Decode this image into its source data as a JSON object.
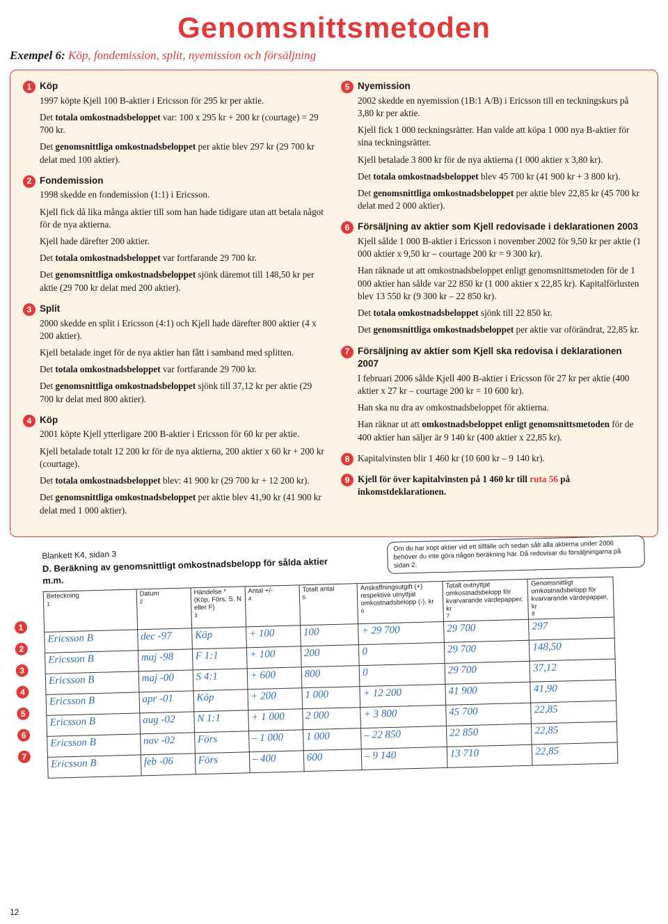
{
  "title": "Genomsnittsmetoden",
  "subtitle_lead": "Exempel 6:",
  "subtitle_rest": " Köp, fondemission, split, nyemission och försäljning",
  "colors": {
    "accent": "#e03a3a",
    "panel_bg": "#fdf3e4",
    "hand": "#2f6db0"
  },
  "left": [
    {
      "n": 1,
      "head": "Köp",
      "paras": [
        "1997 köpte Kjell 100 B-aktier i Ericsson för 295 kr per aktie.",
        "Det <b>totala omkostnadsbeloppet</b> var: 100 x 295 kr + 200 kr (courtage) = 29 700 kr.",
        "Det <b>genomsnittliga omkostnadsbeloppet</b> per aktie blev 297 kr (29 700 kr delat med 100 aktier)."
      ]
    },
    {
      "n": 2,
      "head": "Fondemission",
      "paras": [
        "1998 skedde en fondemission (1:1) i Ericsson.",
        "Kjell fick då lika många aktier till som han hade tidigare utan att betala något för de nya aktierna.",
        "Kjell hade därefter 200 aktier.",
        "Det <b>totala omkostnadsbeloppet</b> var fortfarande 29 700 kr.",
        "Det <b>genomsnittliga omkostnadsbeloppet</b> sjönk däremot till 148,50 kr per aktie (29 700 kr delat med 200 aktier)."
      ]
    },
    {
      "n": 3,
      "head": "Split",
      "paras": [
        "2000 skedde en split i Ericsson (4:1) och Kjell hade därefter 800 aktier (4 x 200 aktier).",
        "Kjell betalade inget för de nya aktier han fått i samband med splitten.",
        "Det <b>totala omkostnadsbeloppet</b> var fortfarande 29 700 kr.",
        "Det <b>genomsnittliga omkostnadsbeloppet</b> sjönk till 37,12 kr per aktie (29 700 kr delat med 800 aktier)."
      ]
    },
    {
      "n": 4,
      "head": "Köp",
      "paras": [
        "2001 köpte Kjell ytterligare 200 B-aktier i Ericsson för 60 kr per aktie.",
        "Kjell betalade totalt 12 200 kr för de nya aktierna, 200 aktier x 60 kr + 200 kr (courtage).",
        "Det <b>totala omkostnadsbeloppet</b> blev: 41 900 kr (29 700 kr + 12 200 kr).",
        "Det <b>genomsnittliga omkostnadsbeloppet</b> per aktie blev 41,90 kr (41 900 kr delat med 1 000 aktier)."
      ]
    }
  ],
  "right": [
    {
      "n": 5,
      "head": "Nyemission",
      "paras": [
        "2002 skedde en nyemission (1B:1 A/B) i Ericsson till en teckningskurs på 3,80 kr per aktie.",
        "Kjell fick 1 000 teckningsrätter. Han valde att köpa 1 000 nya B-aktier för sina teckningsrätter.",
        "Kjell betalade 3 800 kr för de nya aktierna (1 000 aktier x 3,80 kr).",
        "Det <b>totala omkostnadsbeloppet</b> blev 45 700 kr (41 900 kr + 3 800 kr).",
        "Det <b>genomsnittliga omkostnadsbeloppet</b> per aktie blev 22,85 kr (45 700 kr delat med 2 000 aktier)."
      ]
    },
    {
      "n": 6,
      "head": "Försäljning av aktier som Kjell redovisade i deklarationen 2003",
      "paras": [
        "Kjell sålde 1 000 B-aktier i Ericsson i november 2002 för 9,50 kr per aktie (1 000 aktier x 9,50 kr – courtage 200 kr = 9 300 kr).",
        "Han räknade ut att omkostnadsbeloppet enligt genomsnittsmetoden för de 1 000 aktier han sålde var 22 850 kr (1 000 aktier x 22,85 kr). Kapitalförlusten blev 13 550 kr (9 300 kr – 22 850 kr).",
        "Det <b>totala omkostnadsbeloppet</b> sjönk till 22 850 kr.",
        "Det <b>genomsnittliga omkostnadsbeloppet</b> per aktie var oförändrat, 22,85 kr."
      ]
    },
    {
      "n": 7,
      "head": "Försäljning av aktier som Kjell ska redovisa i deklarationen 2007",
      "paras": [
        "I februari 2006 sålde Kjell 400 B-aktier i Ericsson för 27 kr per aktie (400 aktier x 27 kr – courtage 200 kr = 10 600 kr).",
        "Han ska nu dra av omkostnadsbeloppet för aktierna.",
        "Han räknar ut att <b>omkostnadsbeloppet enligt genomsnittsmetoden</b> för de 400 aktier han säljer är 9 140 kr (400 aktier x 22,85 kr)."
      ]
    },
    {
      "n": 8,
      "head": "",
      "paras": [
        "Kapitalvinsten blir 1 460 kr (10 600 kr – 9 140 kr)."
      ]
    },
    {
      "n": 9,
      "head": "",
      "paras": [
        "<b>Kjell för över kapitalvinsten på 1 460 kr till</b> <span class=\"red\">ruta 56</span> <b>på inkomstdeklarationen.</b>"
      ]
    }
  ],
  "form": {
    "label": "Blankett K4, sidan 3",
    "heading": "D. Beräkning av genomsnittligt omkostnadsbelopp för sålda aktier m.m.",
    "note": "Om du har köpt aktier vid ett tillfälle och sedan sålt alla aktierna under 2006 behöver du inte göra någon beräkning här. Då redovisar du försäljningarna på sidan 2.",
    "headers": [
      "Beteckning",
      "Datum",
      "Händelse * (Köp, Förs, S, N eller F)",
      "Antal +/-",
      "Totalt antal",
      "Anskaffningsutgift (+) respektive utnyttjat omkostnadsbelopp (-), kr",
      "Totalt outnyttjat omkostnadsbelopp för kvarvarande värdepapper, kr",
      "Genomsnittligt omkostnadsbelopp för kvarvarande värdepapper, kr"
    ],
    "colnums": [
      "1",
      "2",
      "3",
      "4",
      "5",
      "6",
      "7",
      "8"
    ],
    "rows": [
      [
        "Ericsson B",
        "dec -97",
        "Köp",
        "+ 100",
        "100",
        "+ 29 700",
        "29 700",
        "297"
      ],
      [
        "Ericsson B",
        "maj -98",
        "F 1:1",
        "+ 100",
        "200",
        "0",
        "29 700",
        "148,50"
      ],
      [
        "Ericsson B",
        "maj -00",
        "S 4:1",
        "+ 600",
        "800",
        "0",
        "29 700",
        "37,12"
      ],
      [
        "Ericsson B",
        "apr -01",
        "Köp",
        "+ 200",
        "1 000",
        "+ 12 200",
        "41 900",
        "41,90"
      ],
      [
        "Ericsson B",
        "aug -02",
        "N 1:1",
        "+ 1 000",
        "2 000",
        "+ 3 800",
        "45 700",
        "22,85"
      ],
      [
        "Ericsson B",
        "nov -02",
        "Förs",
        "– 1 000",
        "1 000",
        "– 22 850",
        "22 850",
        "22,85"
      ],
      [
        "Ericsson B",
        "feb -06",
        "Förs",
        "– 400",
        "600",
        "– 9 140",
        "13 710",
        "22,85"
      ]
    ],
    "row_badges": [
      "1",
      "2",
      "3",
      "4",
      "5",
      "6",
      "7"
    ]
  },
  "pagenum": "12"
}
